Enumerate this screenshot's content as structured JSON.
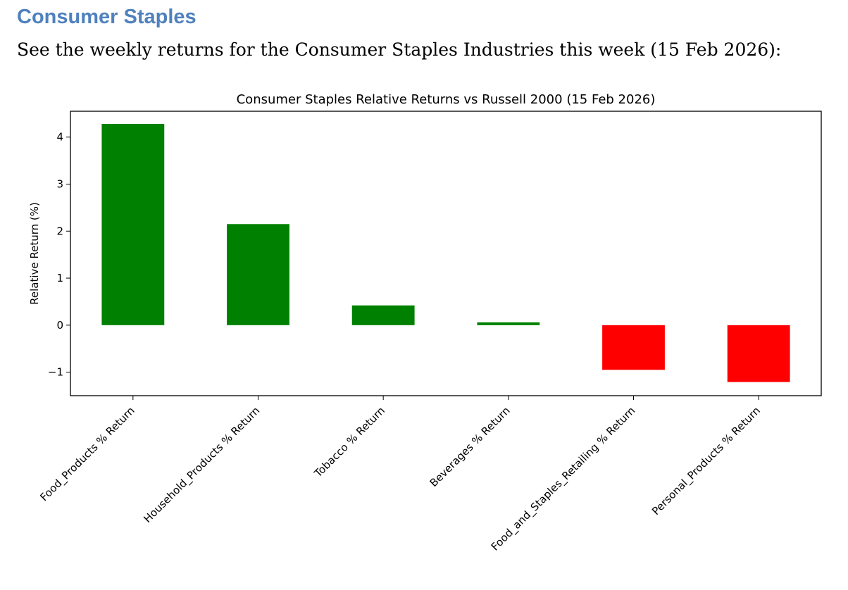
{
  "section": {
    "heading": "Consumer Staples",
    "intro": "See the weekly returns for the Consumer Staples Industries this week (15 Feb 2026):"
  },
  "chart_data": {
    "type": "bar",
    "title": "Consumer Staples Relative Returns vs Russell 2000 (15 Feb 2026)",
    "xlabel": "",
    "ylabel": "Relative Return (%)",
    "ylim": [
      -1.5,
      4.55
    ],
    "yticks": [
      -1,
      0,
      1,
      2,
      3,
      4
    ],
    "ytick_labels": [
      "−1",
      "0",
      "1",
      "2",
      "3",
      "4"
    ],
    "categories": [
      "Food_Products % Return",
      "Household_Products % Return",
      "Tobacco % Return",
      "Beverages % Return",
      "Food_and_Staples_Retailing % Return",
      "Personal_Products % Return"
    ],
    "values": [
      4.28,
      2.15,
      0.42,
      0.06,
      -0.95,
      -1.21
    ],
    "colors": [
      "#008000",
      "#008000",
      "#008000",
      "#008000",
      "#ff0000",
      "#ff0000"
    ],
    "grid": false,
    "legend": "none"
  }
}
